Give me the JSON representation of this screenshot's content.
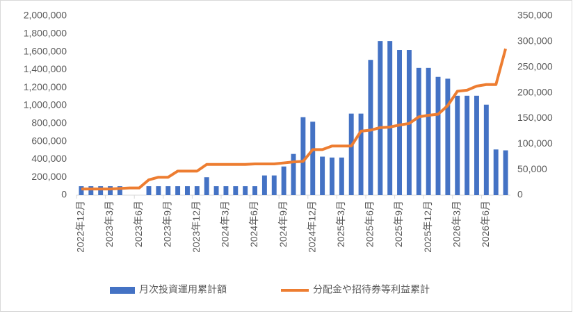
{
  "chart_data": {
    "type": "bar-line",
    "categories": [
      "2022年12月",
      null,
      null,
      "2023年3月",
      null,
      null,
      "2023年6月",
      null,
      null,
      "2023年9月",
      null,
      null,
      "2023年12月",
      null,
      null,
      "2024年3月",
      null,
      null,
      "2024年6月",
      null,
      null,
      "2024年9月",
      null,
      null,
      "2024年12月",
      null,
      null,
      "2025年3月",
      null,
      null,
      "2025年6月",
      null,
      null,
      "2025年9月",
      null,
      null,
      "2025年12月",
      null,
      null,
      "2026年3月",
      null,
      null,
      "2026年6月",
      null,
      null
    ],
    "series": [
      {
        "name": "月次投資運用累計額",
        "type": "bar",
        "color": "#4472c4",
        "values": [
          100000,
          100000,
          100000,
          100000,
          100000,
          0,
          0,
          100000,
          100000,
          100000,
          100000,
          100000,
          100000,
          200000,
          100000,
          100000,
          100000,
          100000,
          100000,
          220000,
          220000,
          320000,
          460000,
          870000,
          820000,
          430000,
          420000,
          420000,
          910000,
          910000,
          1510000,
          1720000,
          1720000,
          1620000,
          1620000,
          1420000,
          1420000,
          1320000,
          1300000,
          1110000,
          1110000,
          1110000,
          1010000,
          510000,
          500000
        ]
      },
      {
        "name": "分配金や招待券等利益累計",
        "type": "line",
        "axis": "y2",
        "color": "#ed7d31",
        "values": [
          12000,
          12000,
          12000,
          12000,
          13000,
          14000,
          14000,
          30000,
          35000,
          35000,
          47000,
          47000,
          47000,
          60000,
          60000,
          60000,
          60000,
          60000,
          61000,
          61000,
          61000,
          63000,
          65000,
          66000,
          89000,
          89000,
          96000,
          96000,
          96000,
          125000,
          127000,
          132000,
          133000,
          137000,
          140000,
          153000,
          156000,
          158000,
          175000,
          203000,
          205000,
          213000,
          216000,
          216000,
          286000
        ]
      }
    ],
    "ylim": [
      0,
      2000000
    ],
    "yticks": [
      0,
      {
        "value": 200000,
        "label": "200,000"
      },
      {
        "value": 400000,
        "label": "400,000"
      },
      {
        "value": 600000,
        "label": "600,000"
      },
      {
        "value": 800000,
        "label": "800,000"
      },
      {
        "value": 1000000,
        "label": "1,000,000"
      },
      {
        "value": 1200000,
        "label": "1,200,000"
      },
      {
        "value": 1400000,
        "label": "1,400,000"
      },
      {
        "value": 1600000,
        "label": "1,600,000"
      },
      {
        "value": 1800000,
        "label": "1,800,000"
      },
      {
        "value": 2000000,
        "label": "2,000,000"
      }
    ],
    "y2lim": [
      0,
      350000
    ],
    "y2ticks": [
      0,
      {
        "value": 50000,
        "label": "50,000"
      },
      {
        "value": 100000,
        "label": "100,000"
      },
      {
        "value": 150000,
        "label": "150,000"
      },
      {
        "value": 200000,
        "label": "200,000"
      },
      {
        "value": 250000,
        "label": "250,000"
      },
      {
        "value": 300000,
        "label": "300,000"
      },
      {
        "value": 350000,
        "label": "350,000"
      }
    ],
    "legend": "bottom"
  }
}
